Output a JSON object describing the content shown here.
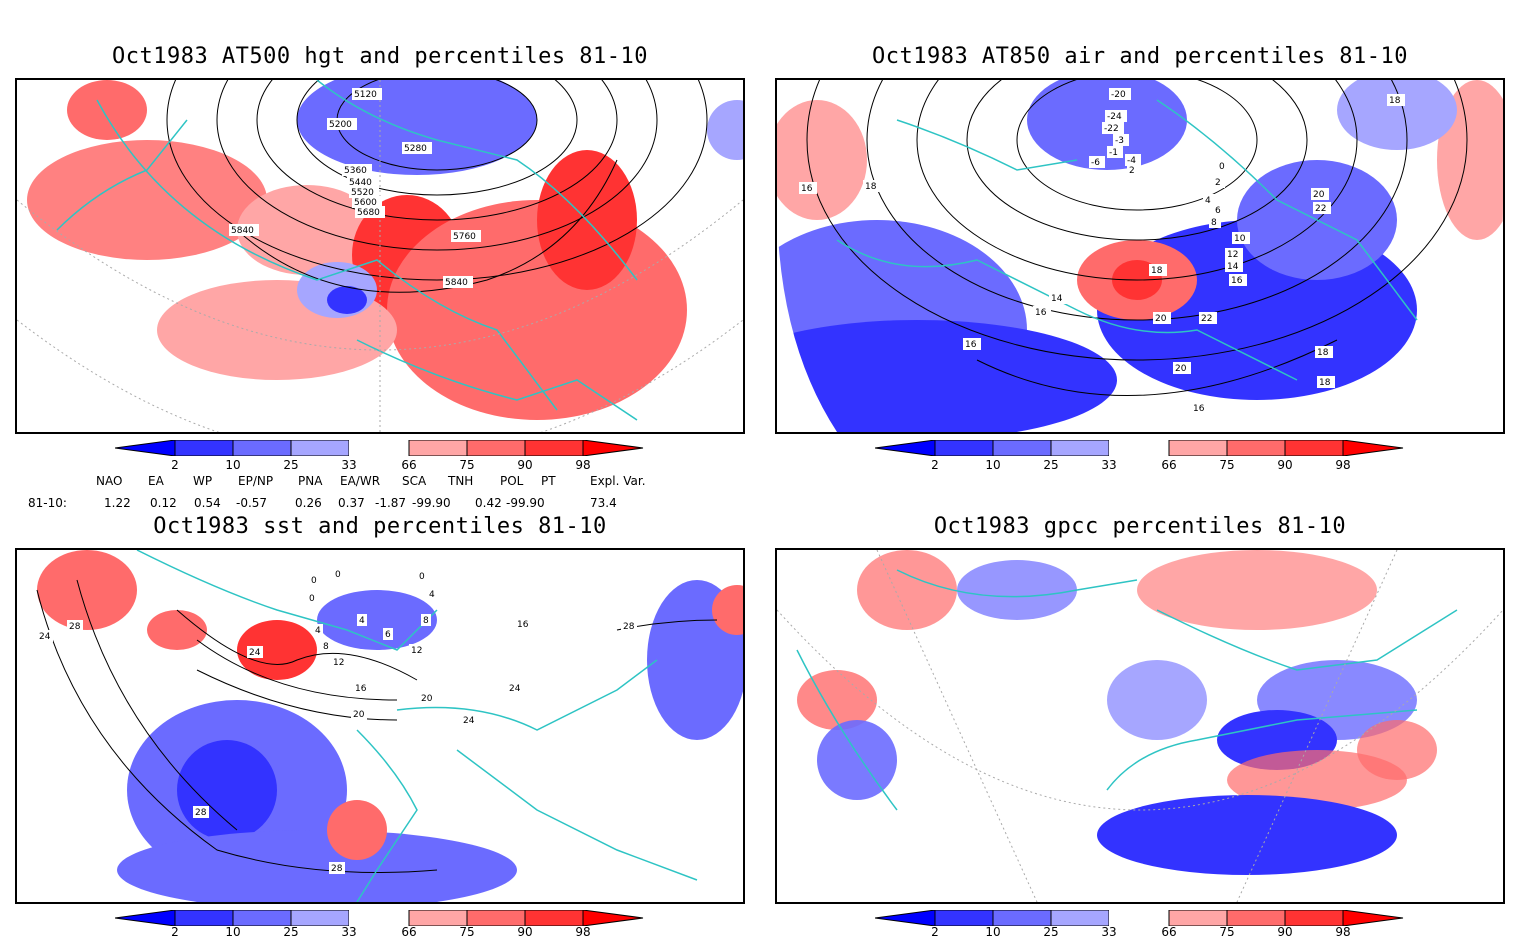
{
  "panels": [
    {
      "title": "Oct1983 AT500 hgt and percentiles 81-10",
      "contour_labels": [
        "5120",
        "5200",
        "5280",
        "5360",
        "5440",
        "5520",
        "5600",
        "5680",
        "5840",
        "5760",
        "5840"
      ]
    },
    {
      "title": "Oct1983 AT850 air and percentiles 81-10",
      "contour_labels": [
        "-20",
        "-24",
        "-22",
        "-3",
        "-1",
        "-6",
        "-4",
        "2",
        "0",
        "2",
        "4",
        "6",
        "8",
        "10",
        "12",
        "14",
        "16",
        "18",
        "20",
        "22",
        "18",
        "16",
        "18",
        "14",
        "16",
        "16",
        "20",
        "22",
        "20",
        "18",
        "16",
        "18"
      ]
    },
    {
      "title": "Oct1983 sst and percentiles 81-10",
      "contour_labels": [
        "0",
        "0",
        "0",
        "0",
        "4",
        "4",
        "4",
        "6",
        "8",
        "12",
        "8",
        "12",
        "16",
        "16",
        "20",
        "20",
        "24",
        "24",
        "24",
        "28",
        "28",
        "28",
        "28",
        "24"
      ]
    },
    {
      "title": "Oct1983 gpcc percentiles 81-10",
      "contour_labels": []
    }
  ],
  "colorbar": {
    "labels": [
      "2",
      "10",
      "25",
      "33",
      "66",
      "75",
      "90",
      "98"
    ],
    "colors": [
      "#0000ff",
      "#3333ff",
      "#6b6bff",
      "#a6a6ff",
      "#ffffff",
      "#ffa6a6",
      "#ff6b6b",
      "#ff3333",
      "#ff0000"
    ]
  },
  "indices": {
    "headers": [
      "NAO",
      "EA",
      "WP",
      "EP/NP",
      "PNA",
      "EA/WR",
      "SCA",
      "TNH",
      "POL",
      "PT",
      "Expl. Var."
    ],
    "row_label": "81-10:",
    "values": [
      "1.22",
      "0.12",
      "0.54",
      "-0.57",
      "0.26",
      "0.37",
      "-1.87",
      "-99.90",
      "0.42",
      "-99.90",
      "73.4"
    ]
  },
  "colors": {
    "coast": "#2ec4c4",
    "contour": "#000000",
    "grid": "#aaaaaa"
  }
}
